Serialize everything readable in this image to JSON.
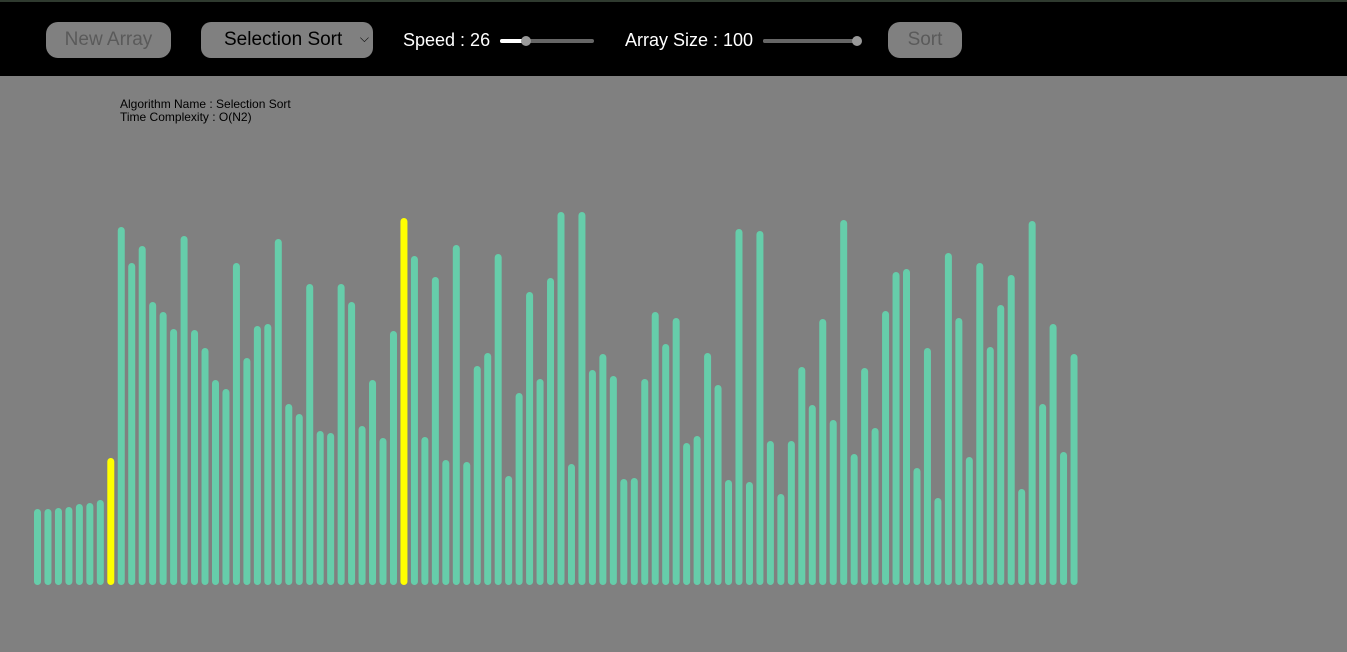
{
  "controls": {
    "new_array_label": "New Array",
    "algorithm_selected": "Selection Sort",
    "speed_label": "Speed : 26",
    "speed_fraction": 0.28,
    "array_size_label": "Array Size : 100",
    "array_size_fraction": 1.0,
    "sort_label": "Sort"
  },
  "info": {
    "algorithm_name": "Algorithm Name : Selection Sort",
    "time_complexity": "Time Complexity : O(N2)"
  },
  "colors": {
    "bar": "#66cdaa",
    "highlight": "#ffff00",
    "background": "#808080",
    "topbar": "#000000"
  },
  "chart_data": {
    "type": "bar",
    "highlight_indices": [
      7,
      35
    ],
    "values": [
      76,
      76,
      77,
      78,
      81,
      82,
      85,
      127,
      358,
      322,
      339,
      283,
      273,
      256,
      349,
      255,
      237,
      205,
      196,
      322,
      227,
      259,
      261,
      346,
      181,
      171,
      301,
      154,
      152,
      301,
      283,
      159,
      205,
      147,
      254,
      367,
      329,
      148,
      308,
      125,
      340,
      123,
      219,
      232,
      331,
      109,
      192,
      293,
      206,
      307,
      373,
      121,
      373,
      215,
      231,
      209,
      106,
      107,
      206,
      273,
      241,
      267,
      142,
      149,
      232,
      200,
      105,
      356,
      103,
      354,
      144,
      91,
      144,
      218,
      180,
      266,
      165,
      365,
      131,
      217,
      157,
      274,
      313,
      316,
      117,
      237,
      87,
      332,
      267,
      128,
      322,
      238,
      280,
      310,
      96,
      364,
      181,
      261,
      133,
      231
    ]
  }
}
